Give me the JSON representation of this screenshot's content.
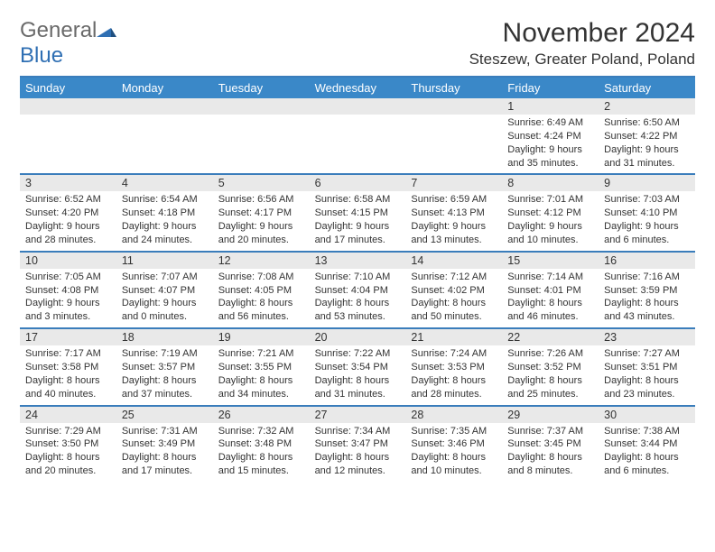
{
  "brand": {
    "text1": "General",
    "text2": "Blue"
  },
  "header": {
    "title": "November 2024",
    "location": "Steszew, Greater Poland, Poland"
  },
  "colors": {
    "accent": "#3a88c8",
    "rule": "#3a7dbb",
    "dateband": "#e9e9e9",
    "text": "#333333",
    "background": "#ffffff",
    "logoGray": "#6a6a6a",
    "logoBlue": "#2f6fb3"
  },
  "days": [
    "Sunday",
    "Monday",
    "Tuesday",
    "Wednesday",
    "Thursday",
    "Friday",
    "Saturday"
  ],
  "weeks": [
    [
      {
        "date": "",
        "lines": []
      },
      {
        "date": "",
        "lines": []
      },
      {
        "date": "",
        "lines": []
      },
      {
        "date": "",
        "lines": []
      },
      {
        "date": "",
        "lines": []
      },
      {
        "date": "1",
        "lines": [
          "Sunrise: 6:49 AM",
          "Sunset: 4:24 PM",
          "Daylight: 9 hours and 35 minutes."
        ]
      },
      {
        "date": "2",
        "lines": [
          "Sunrise: 6:50 AM",
          "Sunset: 4:22 PM",
          "Daylight: 9 hours and 31 minutes."
        ]
      }
    ],
    [
      {
        "date": "3",
        "lines": [
          "Sunrise: 6:52 AM",
          "Sunset: 4:20 PM",
          "Daylight: 9 hours and 28 minutes."
        ]
      },
      {
        "date": "4",
        "lines": [
          "Sunrise: 6:54 AM",
          "Sunset: 4:18 PM",
          "Daylight: 9 hours and 24 minutes."
        ]
      },
      {
        "date": "5",
        "lines": [
          "Sunrise: 6:56 AM",
          "Sunset: 4:17 PM",
          "Daylight: 9 hours and 20 minutes."
        ]
      },
      {
        "date": "6",
        "lines": [
          "Sunrise: 6:58 AM",
          "Sunset: 4:15 PM",
          "Daylight: 9 hours and 17 minutes."
        ]
      },
      {
        "date": "7",
        "lines": [
          "Sunrise: 6:59 AM",
          "Sunset: 4:13 PM",
          "Daylight: 9 hours and 13 minutes."
        ]
      },
      {
        "date": "8",
        "lines": [
          "Sunrise: 7:01 AM",
          "Sunset: 4:12 PM",
          "Daylight: 9 hours and 10 minutes."
        ]
      },
      {
        "date": "9",
        "lines": [
          "Sunrise: 7:03 AM",
          "Sunset: 4:10 PM",
          "Daylight: 9 hours and 6 minutes."
        ]
      }
    ],
    [
      {
        "date": "10",
        "lines": [
          "Sunrise: 7:05 AM",
          "Sunset: 4:08 PM",
          "Daylight: 9 hours and 3 minutes."
        ]
      },
      {
        "date": "11",
        "lines": [
          "Sunrise: 7:07 AM",
          "Sunset: 4:07 PM",
          "Daylight: 9 hours and 0 minutes."
        ]
      },
      {
        "date": "12",
        "lines": [
          "Sunrise: 7:08 AM",
          "Sunset: 4:05 PM",
          "Daylight: 8 hours and 56 minutes."
        ]
      },
      {
        "date": "13",
        "lines": [
          "Sunrise: 7:10 AM",
          "Sunset: 4:04 PM",
          "Daylight: 8 hours and 53 minutes."
        ]
      },
      {
        "date": "14",
        "lines": [
          "Sunrise: 7:12 AM",
          "Sunset: 4:02 PM",
          "Daylight: 8 hours and 50 minutes."
        ]
      },
      {
        "date": "15",
        "lines": [
          "Sunrise: 7:14 AM",
          "Sunset: 4:01 PM",
          "Daylight: 8 hours and 46 minutes."
        ]
      },
      {
        "date": "16",
        "lines": [
          "Sunrise: 7:16 AM",
          "Sunset: 3:59 PM",
          "Daylight: 8 hours and 43 minutes."
        ]
      }
    ],
    [
      {
        "date": "17",
        "lines": [
          "Sunrise: 7:17 AM",
          "Sunset: 3:58 PM",
          "Daylight: 8 hours and 40 minutes."
        ]
      },
      {
        "date": "18",
        "lines": [
          "Sunrise: 7:19 AM",
          "Sunset: 3:57 PM",
          "Daylight: 8 hours and 37 minutes."
        ]
      },
      {
        "date": "19",
        "lines": [
          "Sunrise: 7:21 AM",
          "Sunset: 3:55 PM",
          "Daylight: 8 hours and 34 minutes."
        ]
      },
      {
        "date": "20",
        "lines": [
          "Sunrise: 7:22 AM",
          "Sunset: 3:54 PM",
          "Daylight: 8 hours and 31 minutes."
        ]
      },
      {
        "date": "21",
        "lines": [
          "Sunrise: 7:24 AM",
          "Sunset: 3:53 PM",
          "Daylight: 8 hours and 28 minutes."
        ]
      },
      {
        "date": "22",
        "lines": [
          "Sunrise: 7:26 AM",
          "Sunset: 3:52 PM",
          "Daylight: 8 hours and 25 minutes."
        ]
      },
      {
        "date": "23",
        "lines": [
          "Sunrise: 7:27 AM",
          "Sunset: 3:51 PM",
          "Daylight: 8 hours and 23 minutes."
        ]
      }
    ],
    [
      {
        "date": "24",
        "lines": [
          "Sunrise: 7:29 AM",
          "Sunset: 3:50 PM",
          "Daylight: 8 hours and 20 minutes."
        ]
      },
      {
        "date": "25",
        "lines": [
          "Sunrise: 7:31 AM",
          "Sunset: 3:49 PM",
          "Daylight: 8 hours and 17 minutes."
        ]
      },
      {
        "date": "26",
        "lines": [
          "Sunrise: 7:32 AM",
          "Sunset: 3:48 PM",
          "Daylight: 8 hours and 15 minutes."
        ]
      },
      {
        "date": "27",
        "lines": [
          "Sunrise: 7:34 AM",
          "Sunset: 3:47 PM",
          "Daylight: 8 hours and 12 minutes."
        ]
      },
      {
        "date": "28",
        "lines": [
          "Sunrise: 7:35 AM",
          "Sunset: 3:46 PM",
          "Daylight: 8 hours and 10 minutes."
        ]
      },
      {
        "date": "29",
        "lines": [
          "Sunrise: 7:37 AM",
          "Sunset: 3:45 PM",
          "Daylight: 8 hours and 8 minutes."
        ]
      },
      {
        "date": "30",
        "lines": [
          "Sunrise: 7:38 AM",
          "Sunset: 3:44 PM",
          "Daylight: 8 hours and 6 minutes."
        ]
      }
    ]
  ]
}
